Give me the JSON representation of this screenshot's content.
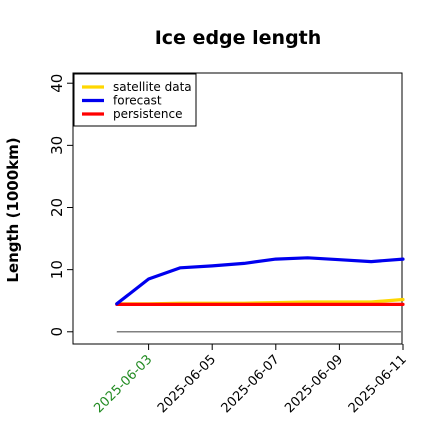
{
  "chart_data": {
    "type": "line",
    "title": "Ice edge length",
    "xlabel": "",
    "ylabel": "Length (1000km)",
    "x": [
      "2025-06-02",
      "2025-06-03",
      "2025-06-04",
      "2025-06-05",
      "2025-06-06",
      "2025-06-07",
      "2025-06-08",
      "2025-06-09",
      "2025-06-10",
      "2025-06-11"
    ],
    "x_ticks": [
      "2025-06-03",
      "2025-06-05",
      "2025-06-07",
      "2025-06-09",
      "2025-06-11"
    ],
    "highlighted_tick": "2025-06-03",
    "highlight_color": "#228b22",
    "xlim": [
      "2025-06-01",
      "2025-06-11"
    ],
    "ylim": [
      -1,
      41
    ],
    "y_ticks": [
      0,
      10,
      20,
      30,
      40
    ],
    "reference_line": {
      "y": 0,
      "color": "#808080"
    },
    "series": [
      {
        "name": "satellite data",
        "color": "#ffd700",
        "values": [
          4.5,
          4.5,
          4.6,
          4.6,
          4.6,
          4.7,
          4.8,
          4.8,
          4.8,
          5.2
        ]
      },
      {
        "name": "forecast",
        "color": "#0000ee",
        "values": [
          4.5,
          8.5,
          10.3,
          10.6,
          11.0,
          11.7,
          11.9,
          11.6,
          11.3,
          11.7
        ]
      },
      {
        "name": "persistence",
        "color": "#ff0000",
        "values": [
          4.4,
          4.4,
          4.4,
          4.4,
          4.4,
          4.4,
          4.4,
          4.4,
          4.4,
          4.4
        ]
      }
    ],
    "legend": {
      "placement": "top-left"
    },
    "grid": false
  }
}
